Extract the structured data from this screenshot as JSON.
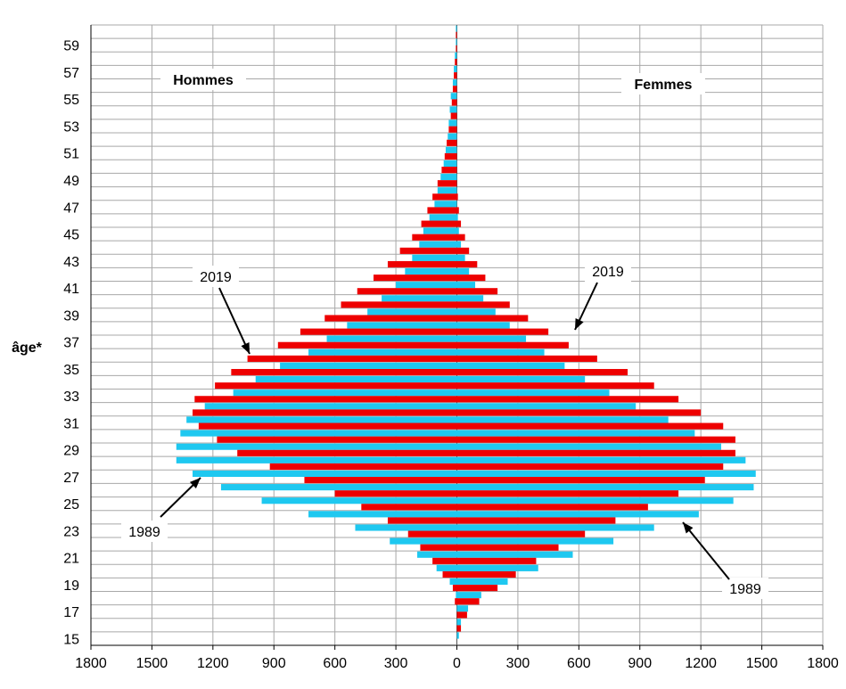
{
  "chart_data": {
    "type": "bar",
    "orientation": "horizontal",
    "layout": "population-pyramid",
    "ylabel": "âge*",
    "ages": [
      15,
      16,
      17,
      18,
      19,
      20,
      21,
      22,
      23,
      24,
      25,
      26,
      27,
      28,
      29,
      30,
      31,
      32,
      33,
      34,
      35,
      36,
      37,
      38,
      39,
      40,
      41,
      42,
      43,
      44,
      45,
      46,
      47,
      48,
      49,
      50,
      51,
      52,
      53,
      54,
      55,
      56,
      57,
      58,
      59,
      60
    ],
    "y_tick_labels": [
      "15",
      "17",
      "19",
      "21",
      "23",
      "25",
      "27",
      "29",
      "31",
      "33",
      "35",
      "37",
      "39",
      "41",
      "43",
      "45",
      "47",
      "49",
      "51",
      "53",
      "55",
      "57",
      "59"
    ],
    "x_tick_labels": [
      "1800",
      "1500",
      "1200",
      "900",
      "600",
      "300",
      "0",
      "300",
      "600",
      "900",
      "1200",
      "1500",
      "1800"
    ],
    "xlim": [
      -1800,
      1800
    ],
    "grid": true,
    "panel_labels": {
      "left": "Hommes",
      "right": "Femmes"
    },
    "annotations": [
      {
        "text": "2019",
        "side": "left"
      },
      {
        "text": "1989",
        "side": "left"
      },
      {
        "text": "2019",
        "side": "right"
      },
      {
        "text": "1989",
        "side": "right"
      }
    ],
    "colors": {
      "1989": "#1ec8f0",
      "2019": "#ee0000"
    },
    "series": [
      {
        "name": "1989",
        "side": "left",
        "values": [
          0,
          0,
          0,
          5,
          35,
          100,
          195,
          330,
          500,
          730,
          960,
          1160,
          1300,
          1380,
          1380,
          1360,
          1330,
          1240,
          1100,
          990,
          870,
          730,
          640,
          540,
          440,
          370,
          300,
          255,
          220,
          185,
          165,
          135,
          110,
          95,
          80,
          65,
          55,
          45,
          40,
          35,
          30,
          20,
          15,
          10,
          5,
          5
        ]
      },
      {
        "name": "2019",
        "side": "left",
        "values": [
          0,
          0,
          0,
          10,
          20,
          70,
          120,
          180,
          240,
          340,
          470,
          600,
          750,
          920,
          1080,
          1180,
          1270,
          1300,
          1290,
          1190,
          1110,
          1030,
          880,
          770,
          650,
          570,
          490,
          410,
          340,
          280,
          220,
          175,
          145,
          120,
          95,
          75,
          60,
          50,
          40,
          30,
          25,
          20,
          15,
          10,
          5,
          5
        ]
      },
      {
        "name": "1989",
        "side": "right",
        "values": [
          10,
          20,
          55,
          120,
          250,
          400,
          570,
          770,
          970,
          1190,
          1360,
          1460,
          1470,
          1420,
          1300,
          1170,
          1040,
          880,
          750,
          630,
          530,
          430,
          340,
          260,
          190,
          130,
          90,
          60,
          40,
          20,
          10,
          5,
          0,
          0,
          0,
          0,
          0,
          0,
          0,
          0,
          0,
          0,
          0,
          0,
          0,
          0
        ]
      },
      {
        "name": "2019",
        "side": "right",
        "values": [
          0,
          20,
          50,
          110,
          200,
          290,
          390,
          500,
          630,
          780,
          940,
          1090,
          1220,
          1310,
          1370,
          1370,
          1310,
          1200,
          1090,
          970,
          840,
          690,
          550,
          450,
          350,
          260,
          200,
          140,
          100,
          60,
          40,
          20,
          10,
          5,
          0,
          0,
          0,
          0,
          0,
          0,
          0,
          0,
          0,
          0,
          0,
          0
        ]
      }
    ]
  }
}
